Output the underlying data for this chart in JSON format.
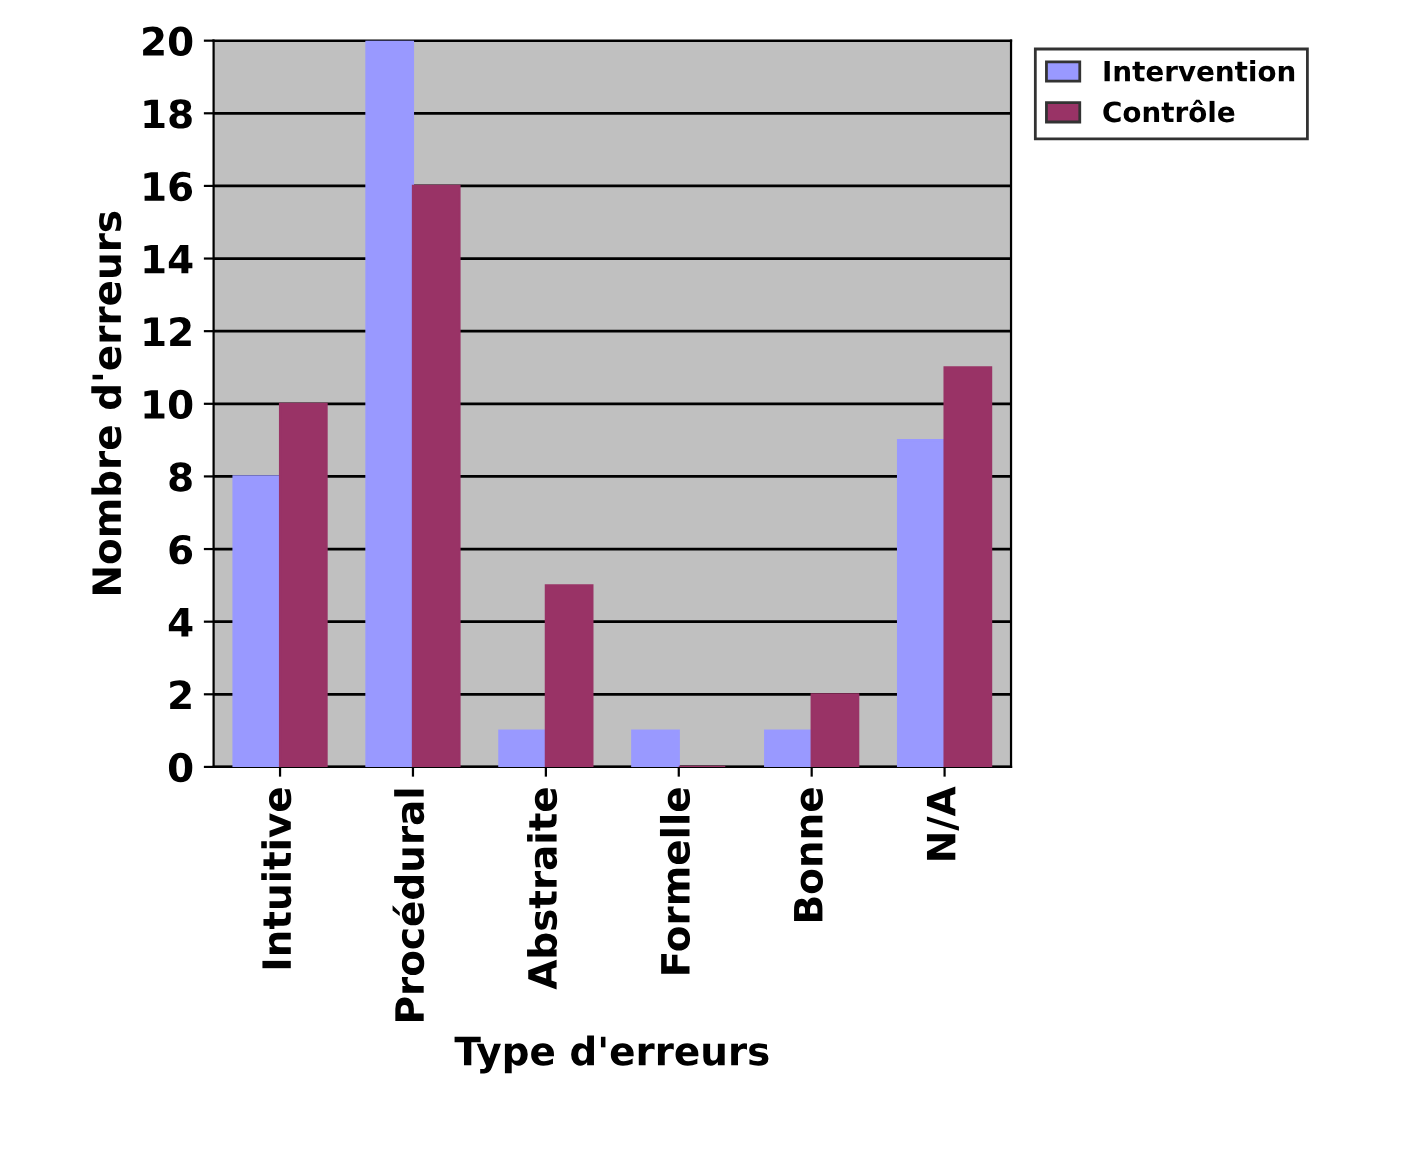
{
  "chart_data": {
    "type": "bar",
    "xlabel": "Type d'erreurs",
    "ylabel": "Nombre d'erreurs",
    "categories": [
      "Intuitive",
      "Procédural",
      "Abstraite",
      "Formelle",
      "Bonne",
      "N/A"
    ],
    "series": [
      {
        "name": "Intervention",
        "color": "#9999ff",
        "values": [
          8,
          20,
          1,
          1,
          1,
          9
        ]
      },
      {
        "name": "Contrôle",
        "color": "#993366",
        "values": [
          10,
          16,
          5,
          0,
          2,
          11
        ]
      }
    ],
    "ylim": [
      0,
      20
    ],
    "yticks": [
      0,
      2,
      4,
      6,
      8,
      10,
      12,
      14,
      16,
      18,
      20
    ],
    "grid": "y",
    "legend": "top right"
  }
}
